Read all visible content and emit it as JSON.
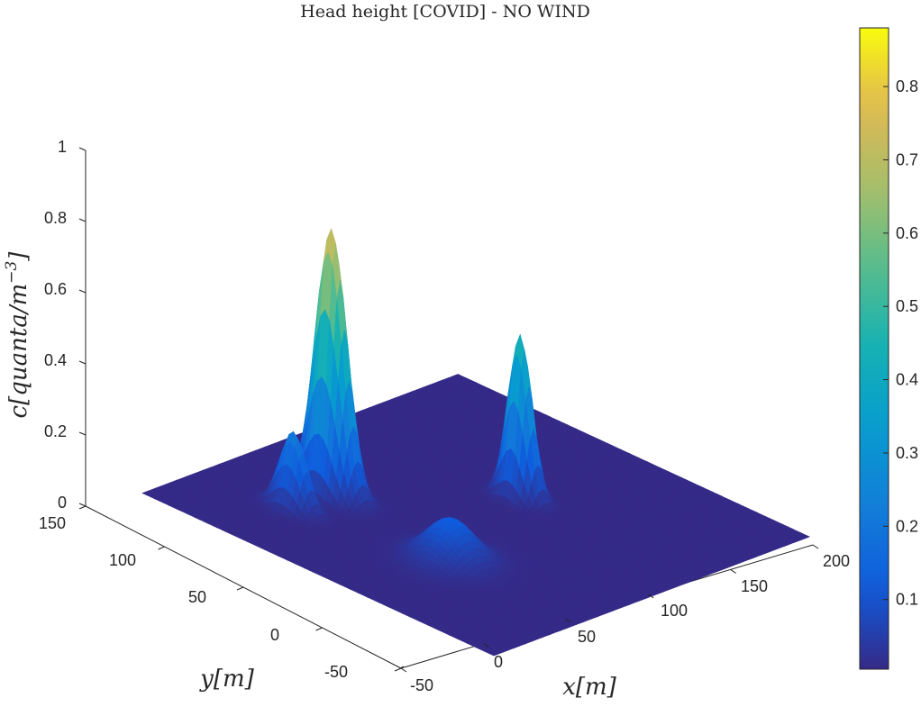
{
  "chart_data": {
    "type": "surface",
    "title": "Head height [COVID] - NO WIND",
    "xlabel": "x[m]",
    "ylabel": "y[m]",
    "zlabel": "c[quanta/m^-3]",
    "zlabel_parts": {
      "base": "c[quanta/m",
      "exp": "−3",
      "close": "]"
    },
    "xlim": [
      -50,
      200
    ],
    "ylim": [
      -50,
      150
    ],
    "zlim": [
      0,
      1
    ],
    "x_ticks": [
      "-50",
      "0",
      "50",
      "100",
      "150",
      "200"
    ],
    "y_ticks": [
      "-50",
      "0",
      "50",
      "100",
      "150"
    ],
    "z_ticks": [
      "0",
      "0.2",
      "0.4",
      "0.6",
      "0.8",
      "1"
    ],
    "colorbar": {
      "colormap": "parula",
      "range": [
        0.005,
        0.88
      ],
      "ticks": [
        "0.1",
        "0.2",
        "0.3",
        "0.4",
        "0.5",
        "0.6",
        "0.7",
        "0.8"
      ]
    },
    "peaks": [
      {
        "x": 0,
        "y": 100,
        "c": 0.22
      },
      {
        "x": 30,
        "y": 100,
        "c": 0.75
      },
      {
        "x": 110,
        "y": 50,
        "c": 0.46
      },
      {
        "x": 20,
        "y": 25,
        "c": 0.12
      }
    ],
    "grid": false
  }
}
